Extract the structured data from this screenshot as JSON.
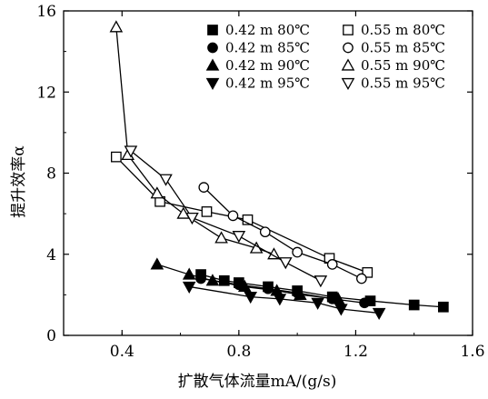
{
  "chart_data": {
    "type": "line",
    "xlabel": "扩散气体流量mA/(g/s)",
    "ylabel": "提升效率α",
    "xlim": [
      0.2,
      1.6
    ],
    "ylim": [
      0,
      16
    ],
    "xticks": [
      "0.4",
      "0.8",
      "1.2",
      "1.6"
    ],
    "yticks": [
      "0",
      "4",
      "8",
      "12",
      "16"
    ],
    "grid": false,
    "legend_position": "top-right",
    "series": [
      {
        "name": "0.42 m 80℃",
        "marker": "square",
        "filled": true,
        "x": [
          0.67,
          0.75,
          0.8,
          0.9,
          1.0,
          1.12,
          1.25,
          1.4,
          1.5
        ],
        "y": [
          3.0,
          2.7,
          2.6,
          2.4,
          2.2,
          1.9,
          1.7,
          1.5,
          1.4
        ]
      },
      {
        "name": "0.42 m 85℃",
        "marker": "circle",
        "filled": true,
        "x": [
          0.67,
          0.8,
          0.9,
          1.0,
          1.12,
          1.23
        ],
        "y": [
          2.8,
          2.5,
          2.3,
          2.1,
          1.8,
          1.6
        ]
      },
      {
        "name": "0.42 m 90℃",
        "marker": "triangle-up",
        "filled": true,
        "x": [
          0.52,
          0.63,
          0.71,
          0.82,
          0.93,
          1.01,
          1.14
        ],
        "y": [
          3.5,
          3.0,
          2.7,
          2.4,
          2.2,
          2.0,
          1.8
        ]
      },
      {
        "name": "0.42 m 95℃",
        "marker": "triangle-down",
        "filled": true,
        "x": [
          0.63,
          0.84,
          0.94,
          1.07,
          1.15,
          1.28
        ],
        "y": [
          2.4,
          1.9,
          1.8,
          1.6,
          1.3,
          1.1
        ]
      },
      {
        "name": "0.55 m 80℃",
        "marker": "square",
        "filled": false,
        "x": [
          0.38,
          0.53,
          0.69,
          0.83,
          1.11,
          1.24
        ],
        "y": [
          8.8,
          6.6,
          6.1,
          5.7,
          3.8,
          3.1
        ]
      },
      {
        "name": "0.55 m 85℃",
        "marker": "circle",
        "filled": false,
        "x": [
          0.68,
          0.78,
          0.89,
          1.0,
          1.12,
          1.22
        ],
        "y": [
          7.3,
          5.9,
          5.1,
          4.1,
          3.5,
          2.8
        ]
      },
      {
        "name": "0.55 m 90℃",
        "marker": "triangle-up",
        "filled": false,
        "x": [
          0.38,
          0.42,
          0.52,
          0.61,
          0.74,
          0.86,
          0.92
        ],
        "y": [
          15.2,
          8.9,
          7.0,
          6.0,
          4.8,
          4.3,
          4.0
        ]
      },
      {
        "name": "0.55 m 95℃",
        "marker": "triangle-down",
        "filled": false,
        "x": [
          0.43,
          0.55,
          0.64,
          0.8,
          0.96,
          1.08
        ],
        "y": [
          9.1,
          7.7,
          5.8,
          4.9,
          3.6,
          2.7
        ]
      }
    ]
  }
}
